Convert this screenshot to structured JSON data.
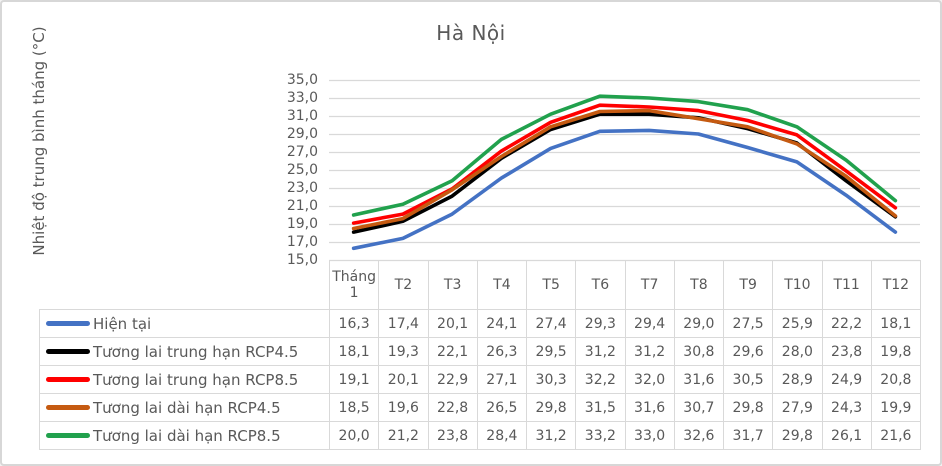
{
  "window": {
    "background": "#FFFFFF",
    "border_color": "#D7D7D7",
    "text_color": "#595959"
  },
  "chart_data": {
    "type": "line",
    "title": "Hà Nội",
    "ylabel": "Nhiệt độ trung bình tháng (°C)",
    "xlabel": "",
    "categories": [
      "Tháng 1",
      "T2",
      "T3",
      "T4",
      "T5",
      "T6",
      "T7",
      "T8",
      "T9",
      "T10",
      "T11",
      "T12"
    ],
    "series": [
      {
        "name": "Hiện tại",
        "color": "#4472C4",
        "values": [
          16.3,
          17.4,
          20.1,
          24.1,
          27.4,
          29.3,
          29.4,
          29.0,
          27.5,
          25.9,
          22.2,
          18.1
        ]
      },
      {
        "name": "Tương lai trung hạn RCP4.5",
        "color": "#000000",
        "values": [
          18.1,
          19.3,
          22.1,
          26.3,
          29.5,
          31.2,
          31.2,
          30.8,
          29.6,
          28.0,
          23.8,
          19.8
        ]
      },
      {
        "name": "Tương lai trung hạn RCP8.5",
        "color": "#FF0000",
        "values": [
          19.1,
          20.1,
          22.9,
          27.1,
          30.3,
          32.2,
          32.0,
          31.6,
          30.5,
          28.9,
          24.9,
          20.8
        ]
      },
      {
        "name": "Tương lai dài hạn RCP4.5",
        "color": "#C55A11",
        "values": [
          18.5,
          19.6,
          22.8,
          26.5,
          29.8,
          31.5,
          31.6,
          30.7,
          29.8,
          27.9,
          24.3,
          19.9
        ]
      },
      {
        "name": "Tương lai dài hạn RCP8.5",
        "color": "#21A14D",
        "values": [
          20.0,
          21.2,
          23.8,
          28.4,
          31.2,
          33.2,
          33.0,
          32.6,
          31.7,
          29.8,
          26.1,
          21.6
        ]
      }
    ],
    "ylim": [
      15,
      35
    ],
    "y_tick_step": 2,
    "y_tick_labels": [
      "35,0",
      "33,0",
      "31,0",
      "29,0",
      "27,0",
      "25,0",
      "23,0",
      "21,0",
      "19,0",
      "17,0",
      "15,0"
    ],
    "decimal_separator": ",",
    "grid": true,
    "gridline_color": "#D9D9D9",
    "legend_position": "data-table-left"
  }
}
